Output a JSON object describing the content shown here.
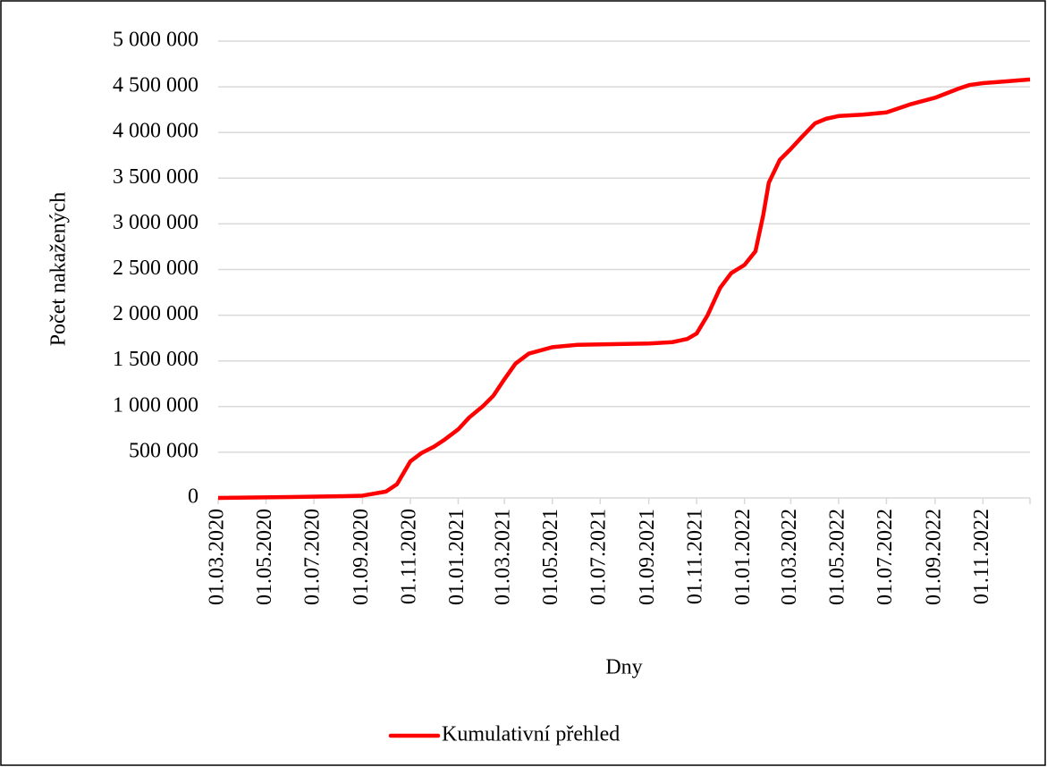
{
  "chart_data": {
    "type": "line",
    "x_label": "Dny",
    "y_label": "Počet nakažených",
    "x": [
      "2020-03-01",
      "2020-06-01",
      "2020-08-01",
      "2020-09-01",
      "2020-10-01",
      "2020-10-15",
      "2020-11-01",
      "2020-11-15",
      "2020-12-01",
      "2020-12-15",
      "2021-01-01",
      "2021-01-15",
      "2021-02-01",
      "2021-02-15",
      "2021-03-01",
      "2021-03-15",
      "2021-04-01",
      "2021-05-01",
      "2021-06-01",
      "2021-07-01",
      "2021-08-01",
      "2021-09-01",
      "2021-10-01",
      "2021-10-20",
      "2021-11-01",
      "2021-11-15",
      "2021-12-01",
      "2021-12-15",
      "2022-01-01",
      "2022-01-15",
      "2022-01-25",
      "2022-02-01",
      "2022-02-15",
      "2022-03-01",
      "2022-03-15",
      "2022-04-01",
      "2022-04-15",
      "2022-05-01",
      "2022-06-01",
      "2022-07-01",
      "2022-08-01",
      "2022-09-01",
      "2022-10-01",
      "2022-10-15",
      "2022-11-01",
      "2022-12-01",
      "2022-12-31"
    ],
    "series": [
      {
        "name": "Kumulativní přehled",
        "color": "#ff0000",
        "values": [
          0,
          10000,
          18000,
          25000,
          70000,
          150000,
          400000,
          490000,
          560000,
          640000,
          750000,
          880000,
          1000000,
          1120000,
          1300000,
          1470000,
          1580000,
          1650000,
          1675000,
          1680000,
          1685000,
          1690000,
          1705000,
          1740000,
          1800000,
          2000000,
          2300000,
          2460000,
          2550000,
          2700000,
          3100000,
          3450000,
          3700000,
          3820000,
          3950000,
          4100000,
          4150000,
          4180000,
          4195000,
          4220000,
          4310000,
          4380000,
          4480000,
          4520000,
          4540000,
          4560000,
          4580000
        ]
      }
    ],
    "xlim": [
      "2020-03-01",
      "2022-12-31"
    ],
    "xticks": [
      {
        "value": "2020-03-01",
        "label": "01.03.2020"
      },
      {
        "value": "2020-05-01",
        "label": "01.05.2020"
      },
      {
        "value": "2020-07-01",
        "label": "01.07.2020"
      },
      {
        "value": "2020-09-01",
        "label": "01.09.2020"
      },
      {
        "value": "2020-11-01",
        "label": "01.11.2020"
      },
      {
        "value": "2021-01-01",
        "label": "01.01.2021"
      },
      {
        "value": "2021-03-01",
        "label": "01.03.2021"
      },
      {
        "value": "2021-05-01",
        "label": "01.05.2021"
      },
      {
        "value": "2021-07-01",
        "label": "01.07.2021"
      },
      {
        "value": "2021-09-01",
        "label": "01.09.2021"
      },
      {
        "value": "2021-11-01",
        "label": "01.11.2021"
      },
      {
        "value": "2022-01-01",
        "label": "01.01.2022"
      },
      {
        "value": "2022-03-01",
        "label": "01.03.2022"
      },
      {
        "value": "2022-05-01",
        "label": "01.05.2022"
      },
      {
        "value": "2022-07-01",
        "label": "01.07.2022"
      },
      {
        "value": "2022-09-01",
        "label": "01.09.2022"
      },
      {
        "value": "2022-11-01",
        "label": "01.11.2022"
      }
    ],
    "ylim": [
      0,
      5000000
    ],
    "yticks": [
      0,
      {
        "value": 500000,
        "label": "500 000"
      },
      {
        "value": 1000000,
        "label": "1 000 000"
      },
      {
        "value": 1500000,
        "label": "1 500 000"
      },
      {
        "value": 2000000,
        "label": "2 000 000"
      },
      {
        "value": 2500000,
        "label": "2 500 000"
      },
      {
        "value": 3000000,
        "label": "3 000 000"
      },
      {
        "value": 3500000,
        "label": "3 500 000"
      },
      {
        "value": 4000000,
        "label": "4 000 000"
      },
      {
        "value": 4500000,
        "label": "4 500 000"
      },
      {
        "value": 5000000,
        "label": "5 000 000"
      }
    ],
    "grid": true,
    "legend": "bottom"
  }
}
